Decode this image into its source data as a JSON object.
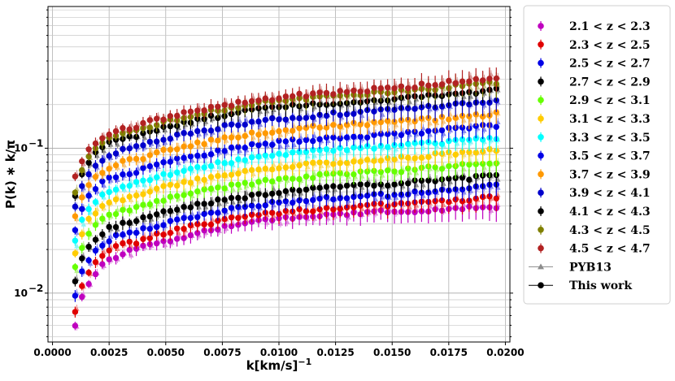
{
  "chart_data": {
    "type": "scatter",
    "xlabel": "k[km/s]",
    "xlabel_sup": "−1",
    "ylabel": "P(k) ∗ k/π",
    "xlim": [
      -0.0002,
      0.0202
    ],
    "ylim": [
      0.0046,
      0.95
    ],
    "yscale": "log",
    "grid": true,
    "legend_placement": "outside-right",
    "x_ticks": [
      0.0,
      0.0025,
      0.005,
      0.0075,
      0.01,
      0.0125,
      0.015,
      0.0175,
      0.02
    ],
    "x_tick_labels": [
      "0.0000",
      "0.0025",
      "0.0050",
      "0.0075",
      "0.0100",
      "0.0125",
      "0.0150",
      "0.0175",
      "0.0200"
    ],
    "y_major_ticks": [
      0.01,
      0.1
    ],
    "y_major_labels": [
      "10",
      "10"
    ],
    "y_major_label_exps": [
      "−2",
      "−1"
    ],
    "k": [
      0.001,
      0.0013,
      0.0016,
      0.0019,
      0.0022,
      0.0025,
      0.0028,
      0.0031,
      0.0034,
      0.0037,
      0.004,
      0.0043,
      0.0046,
      0.0049,
      0.0052,
      0.0055,
      0.0058,
      0.0061,
      0.0064,
      0.0067,
      0.007,
      0.0073,
      0.0076,
      0.0079,
      0.0082,
      0.0085,
      0.0088,
      0.0091,
      0.0094,
      0.0097,
      0.01,
      0.0103,
      0.0106,
      0.0109,
      0.0112,
      0.0115,
      0.0118,
      0.0121,
      0.0124,
      0.0127,
      0.013,
      0.0133,
      0.0136,
      0.0139,
      0.0142,
      0.0145,
      0.0148,
      0.0151,
      0.0154,
      0.0157,
      0.016,
      0.0163,
      0.0166,
      0.0169,
      0.0172,
      0.0175,
      0.0178,
      0.0181,
      0.0184,
      0.0187,
      0.019,
      0.0193,
      0.0196
    ],
    "series": [
      {
        "name": "2.1 < z < 2.3",
        "color": "#bf00bf",
        "pyb_color": "#e08ae0",
        "values": [
          0.0061,
          0.0092,
          0.0115,
          0.0138,
          0.0155,
          0.017,
          0.018,
          0.0188,
          0.0193,
          0.0198,
          0.0208,
          0.0215,
          0.0222,
          0.0228,
          0.0233,
          0.024,
          0.0246,
          0.0252,
          0.0258,
          0.0263,
          0.027,
          0.0278,
          0.0285,
          0.0291,
          0.0296,
          0.0301,
          0.0305,
          0.031,
          0.0314,
          0.0318,
          0.0322,
          0.0326,
          0.033,
          0.0333,
          0.0336,
          0.0339,
          0.0342,
          0.0345,
          0.0347,
          0.035,
          0.0352,
          0.0354,
          0.0356,
          0.0358,
          0.036,
          0.0362,
          0.0364,
          0.0366,
          0.0368,
          0.037,
          0.0372,
          0.0374,
          0.0376,
          0.0378,
          0.038,
          0.0382,
          0.0384,
          0.0386,
          0.0388,
          0.039,
          0.0392,
          0.0394,
          0.0396
        ]
      },
      {
        "name": "2.3 < z < 2.5",
        "color": "#e00000",
        "pyb_color": "#f08c8c",
        "values": [
          0.0076,
          0.0112,
          0.014,
          0.0165,
          0.0183,
          0.0198,
          0.0208,
          0.0215,
          0.022,
          0.0225,
          0.0235,
          0.0243,
          0.025,
          0.0258,
          0.0265,
          0.0272,
          0.0279,
          0.0286,
          0.0292,
          0.0298,
          0.0304,
          0.0311,
          0.0318,
          0.0324,
          0.033,
          0.0335,
          0.034,
          0.0345,
          0.035,
          0.0354,
          0.0358,
          0.0362,
          0.0366,
          0.037,
          0.0373,
          0.0376,
          0.0379,
          0.0382,
          0.0385,
          0.0388,
          0.0391,
          0.0394,
          0.0396,
          0.0398,
          0.0401,
          0.0403,
          0.0405,
          0.0408,
          0.041,
          0.0413,
          0.0415,
          0.0418,
          0.042,
          0.0423,
          0.0426,
          0.043,
          0.0434,
          0.0438,
          0.0442,
          0.0447,
          0.0452,
          0.0457,
          0.0462
        ]
      },
      {
        "name": "2.5 < z < 2.7",
        "color": "#0000e6",
        "pyb_color": "#8c8cf0",
        "values": [
          0.0095,
          0.0138,
          0.017,
          0.0198,
          0.0218,
          0.0234,
          0.0245,
          0.0253,
          0.026,
          0.0266,
          0.0276,
          0.0285,
          0.0294,
          0.0303,
          0.0311,
          0.0319,
          0.0327,
          0.0335,
          0.0342,
          0.0349,
          0.0356,
          0.0364,
          0.0372,
          0.0379,
          0.0386,
          0.0392,
          0.0398,
          0.0404,
          0.041,
          0.0415,
          0.042,
          0.0425,
          0.0429,
          0.0433,
          0.0437,
          0.0441,
          0.0445,
          0.0449,
          0.0452,
          0.0455,
          0.0458,
          0.0461,
          0.0464,
          0.0467,
          0.047,
          0.0473,
          0.0476,
          0.0479,
          0.0482,
          0.0486,
          0.049,
          0.0494,
          0.0498,
          0.0502,
          0.0507,
          0.0512,
          0.0517,
          0.0522,
          0.0527,
          0.0532,
          0.0538,
          0.0544,
          0.055
        ]
      },
      {
        "name": "2.7 < z < 2.9",
        "color": "#000000",
        "pyb_color": "#8c8c8c",
        "values": [
          0.012,
          0.017,
          0.021,
          0.024,
          0.0262,
          0.028,
          0.0292,
          0.0301,
          0.0309,
          0.0316,
          0.0328,
          0.0339,
          0.035,
          0.036,
          0.037,
          0.038,
          0.0389,
          0.0398,
          0.0407,
          0.0415,
          0.0424,
          0.0433,
          0.0442,
          0.045,
          0.0458,
          0.0465,
          0.0472,
          0.0479,
          0.0486,
          0.0492,
          0.0498,
          0.0504,
          0.0509,
          0.0514,
          0.0519,
          0.0524,
          0.0528,
          0.0532,
          0.0536,
          0.054,
          0.0544,
          0.0548,
          0.0552,
          0.0555,
          0.0559,
          0.0562,
          0.0566,
          0.057,
          0.0574,
          0.0578,
          0.0582,
          0.0587,
          0.0592,
          0.0597,
          0.0602,
          0.0607,
          0.0612,
          0.0618,
          0.0624,
          0.063,
          0.0636,
          0.0642,
          0.0648
        ]
      },
      {
        "name": "2.9 < z < 3.1",
        "color": "#66ff00",
        "pyb_color": "#b8f28c",
        "values": [
          0.015,
          0.021,
          0.0258,
          0.0295,
          0.0322,
          0.0343,
          0.0358,
          0.0369,
          0.0379,
          0.0388,
          0.0402,
          0.0416,
          0.0429,
          0.0442,
          0.0454,
          0.0466,
          0.0477,
          0.0488,
          0.0499,
          0.0509,
          0.052,
          0.0531,
          0.0542,
          0.0552,
          0.0561,
          0.057,
          0.0579,
          0.0587,
          0.0595,
          0.0603,
          0.061,
          0.0617,
          0.0624,
          0.063,
          0.0636,
          0.0642,
          0.0647,
          0.0652,
          0.0657,
          0.0662,
          0.0667,
          0.0672,
          0.0676,
          0.0681,
          0.0685,
          0.069,
          0.0695,
          0.07,
          0.0705,
          0.071,
          0.0716,
          0.0722,
          0.0728,
          0.0734,
          0.0741,
          0.0748,
          0.0755,
          0.0762,
          0.0769,
          0.0776,
          0.0784,
          0.0792,
          0.08
        ]
      },
      {
        "name": "3.1 < z < 3.3",
        "color": "#ffcc00",
        "pyb_color": "#f5e08c",
        "values": [
          0.0185,
          0.0258,
          0.0316,
          0.036,
          0.0393,
          0.0418,
          0.0436,
          0.045,
          0.0462,
          0.0473,
          0.049,
          0.0507,
          0.0523,
          0.0539,
          0.0554,
          0.0568,
          0.0582,
          0.0595,
          0.0608,
          0.0621,
          0.0634,
          0.0647,
          0.066,
          0.0672,
          0.0684,
          0.0695,
          0.0706,
          0.0716,
          0.0726,
          0.0735,
          0.0744,
          0.0752,
          0.076,
          0.0768,
          0.0775,
          0.0782,
          0.0789,
          0.0795,
          0.0801,
          0.0807,
          0.0813,
          0.0819,
          0.0825,
          0.083,
          0.0836,
          0.0842,
          0.0848,
          0.0854,
          0.086,
          0.0867,
          0.0874,
          0.0881,
          0.0888,
          0.0896,
          0.0904,
          0.0912,
          0.0921,
          0.093,
          0.0939,
          0.0948,
          0.0958,
          0.0968,
          0.0978
        ]
      },
      {
        "name": "3.3 < z < 3.5",
        "color": "#00ffff",
        "pyb_color": "#8cf5f5",
        "values": [
          0.0225,
          0.0312,
          0.0382,
          0.0436,
          0.0475,
          0.0505,
          0.0527,
          0.0544,
          0.0558,
          0.0572,
          0.0592,
          0.0613,
          0.0632,
          0.0651,
          0.0669,
          0.0686,
          0.0703,
          0.0719,
          0.0735,
          0.075,
          0.0766,
          0.0782,
          0.0797,
          0.0812,
          0.0826,
          0.084,
          0.0853,
          0.0865,
          0.0877,
          0.0888,
          0.0899,
          0.0909,
          0.0919,
          0.0928,
          0.0937,
          0.0945,
          0.0953,
          0.0961,
          0.0968,
          0.0975,
          0.0982,
          0.0989,
          0.0996,
          0.1003,
          0.101,
          0.1017,
          0.1024,
          0.1032,
          0.104,
          0.1048,
          0.1056,
          0.1065,
          0.1074,
          0.1083,
          0.1093,
          0.1103,
          0.1113,
          0.1124,
          0.1135,
          0.1146,
          0.1158,
          0.117,
          0.1182
        ]
      },
      {
        "name": "3.5 < z < 3.7",
        "color": "#0000e6",
        "pyb_color": "#8c8cf0",
        "values": [
          0.0275,
          0.038,
          0.0465,
          0.053,
          0.0578,
          0.0614,
          0.0641,
          0.0662,
          0.0679,
          0.0696,
          0.072,
          0.0745,
          0.0769,
          0.0792,
          0.0814,
          0.0835,
          0.0855,
          0.0875,
          0.0894,
          0.0913,
          0.0932,
          0.0951,
          0.097,
          0.0988,
          0.1005,
          0.1022,
          0.1038,
          0.1053,
          0.1067,
          0.1081,
          0.1094,
          0.1106,
          0.1118,
          0.1129,
          0.114,
          0.115,
          0.116,
          0.1169,
          0.1178,
          0.1187,
          0.1195,
          0.1204,
          0.1212,
          0.122,
          0.1229,
          0.1238,
          0.1247,
          0.1256,
          0.1266,
          0.1276,
          0.1286,
          0.1297,
          0.1308,
          0.1319,
          0.1331,
          0.1343,
          0.1355,
          0.1368,
          0.1381,
          0.1395,
          0.1409,
          0.1424,
          0.1439
        ]
      },
      {
        "name": "3.7 < z < 3.9",
        "color": "#ff9900",
        "pyb_color": "#f5c98c",
        "values": [
          0.033,
          0.0458,
          0.056,
          0.0638,
          0.0696,
          0.074,
          0.0772,
          0.0797,
          0.0818,
          0.0838,
          0.0867,
          0.0897,
          0.0926,
          0.0954,
          0.098,
          0.1005,
          0.103,
          0.1054,
          0.1077,
          0.11,
          0.1122,
          0.1145,
          0.1168,
          0.119,
          0.1211,
          0.1231,
          0.125,
          0.1268,
          0.1285,
          0.1302,
          0.1317,
          0.1332,
          0.1346,
          0.136,
          0.1373,
          0.1385,
          0.1397,
          0.1408,
          0.1419,
          0.143,
          0.144,
          0.145,
          0.146,
          0.147,
          0.148,
          0.1491,
          0.1502,
          0.1513,
          0.1525,
          0.1537,
          0.1549,
          0.1562,
          0.1575,
          0.1589,
          0.1603,
          0.1618,
          0.1633,
          0.1648,
          0.1664,
          0.168,
          0.1697,
          0.1715,
          0.1733
        ]
      },
      {
        "name": "3.9 < z < 4.1",
        "color": "#0000cc",
        "pyb_color": "#8c8ce6",
        "values": [
          0.04,
          0.0555,
          0.0678,
          0.0773,
          0.0843,
          0.0897,
          0.0935,
          0.0966,
          0.0991,
          0.1015,
          0.105,
          0.1087,
          0.1122,
          0.1156,
          0.1187,
          0.1218,
          0.1248,
          0.1277,
          0.1305,
          0.1333,
          0.136,
          0.1388,
          0.1415,
          0.1442,
          0.1467,
          0.1492,
          0.1515,
          0.1537,
          0.1557,
          0.1577,
          0.1596,
          0.1614,
          0.1631,
          0.1648,
          0.1663,
          0.1678,
          0.1693,
          0.1706,
          0.1719,
          0.1732,
          0.1745,
          0.1757,
          0.1769,
          0.1781,
          0.1794,
          0.1806,
          0.1819,
          0.1833,
          0.1847,
          0.1862,
          0.1877,
          0.1893,
          0.1909,
          0.1925,
          0.1942,
          0.196,
          0.1978,
          0.1997,
          0.2016,
          0.2036,
          0.2056,
          0.2078,
          0.21
        ]
      },
      {
        "name": "4.1 < z < 4.3",
        "color": "#000000",
        "pyb_color": "#8c8c8c",
        "values": [
          0.048,
          0.0665,
          0.0813,
          0.0927,
          0.1011,
          0.1075,
          0.1121,
          0.1158,
          0.1188,
          0.1217,
          0.1259,
          0.1303,
          0.1345,
          0.1385,
          0.1423,
          0.146,
          0.1496,
          0.1531,
          0.1565,
          0.1598,
          0.1631,
          0.1664,
          0.1697,
          0.1729,
          0.1759,
          0.1789,
          0.1816,
          0.1843,
          0.1867,
          0.1891,
          0.1913,
          0.1935,
          0.1956,
          0.1975,
          0.1994,
          0.2012,
          0.2029,
          0.2045,
          0.2061,
          0.2077,
          0.2092,
          0.2107,
          0.2121,
          0.2136,
          0.215,
          0.2165,
          0.2181,
          0.2197,
          0.2214,
          0.2231,
          0.2249,
          0.2268,
          0.2287,
          0.2307,
          0.2328,
          0.2349,
          0.2371,
          0.2394,
          0.2417,
          0.2441,
          0.2465,
          0.2491,
          0.2517
        ]
      },
      {
        "name": "4.3 < z < 4.5",
        "color": "#808000",
        "pyb_color": "#c9c98c",
        "values": [
          0.05,
          0.07,
          0.086,
          0.0985,
          0.108,
          0.1152,
          0.1205,
          0.1248,
          0.1283,
          0.1317,
          0.1365,
          0.1415,
          0.1463,
          0.1509,
          0.1553,
          0.1595,
          0.1636,
          0.1676,
          0.1715,
          0.1753,
          0.1791,
          0.1829,
          0.1866,
          0.1903,
          0.1938,
          0.1972,
          0.2004,
          0.2035,
          0.2064,
          0.2092,
          0.2118,
          0.2144,
          0.2168,
          0.2191,
          0.2213,
          0.2234,
          0.2255,
          0.2275,
          0.2294,
          0.2313,
          0.2331,
          0.2349,
          0.2367,
          0.2385,
          0.2403,
          0.2422,
          0.2441,
          0.2461,
          0.2482,
          0.2503,
          0.2525,
          0.2548,
          0.2572,
          0.2597,
          0.2622,
          0.2648,
          0.2675,
          0.2703,
          0.2731,
          0.276,
          0.279,
          0.2821,
          0.2852
        ]
      },
      {
        "name": "4.5 < z < 4.7",
        "color": "#b22222",
        "pyb_color": "#d99a9a",
        "values": [
          0.063,
          0.082,
          0.098,
          0.11,
          0.119,
          0.126,
          0.1312,
          0.1354,
          0.1389,
          0.1422,
          0.147,
          0.152,
          0.1568,
          0.1614,
          0.1658,
          0.17,
          0.1741,
          0.1781,
          0.182,
          0.1858,
          0.1896,
          0.1934,
          0.1972,
          0.2009,
          0.2045,
          0.208,
          0.2113,
          0.2145,
          0.2175,
          0.2204,
          0.2232,
          0.2259,
          0.2285,
          0.231,
          0.2334,
          0.2357,
          0.238,
          0.2402,
          0.2424,
          0.2445,
          0.2466,
          0.2487,
          0.2508,
          0.2529,
          0.2551,
          0.2573,
          0.2596,
          0.262,
          0.2645,
          0.2671,
          0.2698,
          0.2726,
          0.2755,
          0.2785,
          0.2816,
          0.2848,
          0.2881,
          0.2915,
          0.295,
          0.2986,
          0.3023,
          0.3061,
          0.31
        ]
      }
    ],
    "legend_extra": [
      {
        "name": "PYB13",
        "marker": "triangle",
        "color": "#8c8c8c"
      },
      {
        "name": "This work",
        "marker": "circle",
        "color": "#000000"
      }
    ]
  }
}
